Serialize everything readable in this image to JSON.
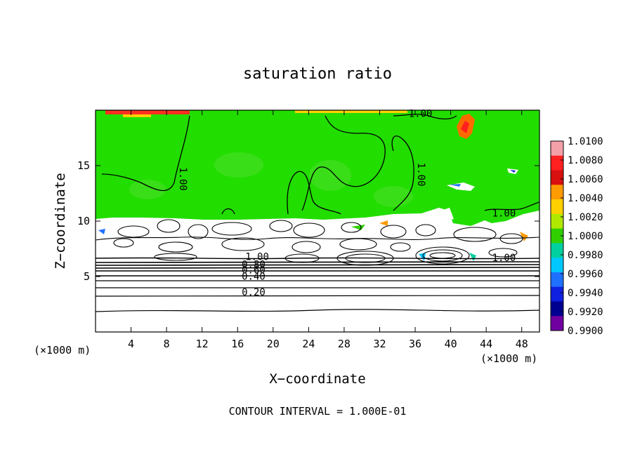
{
  "chart_data": {
    "type": "heatmap",
    "title": "saturation ratio",
    "xlabel": "X−coordinate",
    "ylabel": "Z−coordinate",
    "x_unit": "(×1000 m)",
    "z_unit": "(×1000 m)",
    "xlim": [
      0,
      50
    ],
    "ylim": [
      0,
      20
    ],
    "x_ticks": [
      4,
      8,
      12,
      16,
      20,
      24,
      28,
      32,
      36,
      40,
      44,
      48
    ],
    "y_ticks": [
      5,
      10,
      15
    ],
    "grid": false,
    "colorbar": {
      "placement": "right",
      "min": 0.99,
      "max": 1.01,
      "labels": [
        "1.0100",
        "1.0080",
        "1.0060",
        "1.0040",
        "1.0020",
        "1.0000",
        "0.9980",
        "0.9960",
        "0.9940",
        "0.9920",
        "0.9900"
      ],
      "colors": [
        "#f4a0a8",
        "#ff2020",
        "#d81010",
        "#ff9a00",
        "#ffd000",
        "#b0e800",
        "#30d000",
        "#00d0a0",
        "#00c8ff",
        "#2070ff",
        "#1020e0",
        "#000090",
        "#7000a0"
      ]
    },
    "contour_labels": [
      {
        "text": "1.00",
        "x": 9.5,
        "z": 13.8
      },
      {
        "text": "1.00",
        "x": 36.3,
        "z": 14.2
      },
      {
        "text": "1.00",
        "x": 36.6,
        "z": 19.4
      },
      {
        "text": "1.00",
        "x": 46.0,
        "z": 10.4
      },
      {
        "text": "1.00",
        "x": 46.0,
        "z": 6.4
      },
      {
        "text": "1.00",
        "x": 18.2,
        "z": 6.5
      },
      {
        "text": "0.80",
        "x": 17.8,
        "z": 5.8
      },
      {
        "text": "0.60",
        "x": 17.8,
        "z": 5.3
      },
      {
        "text": "0.40",
        "x": 17.8,
        "z": 4.7
      },
      {
        "text": "0.20",
        "x": 17.8,
        "z": 3.3
      }
    ],
    "contour_interval_note": "CONTOUR INTERVAL = 1.000E-01"
  }
}
